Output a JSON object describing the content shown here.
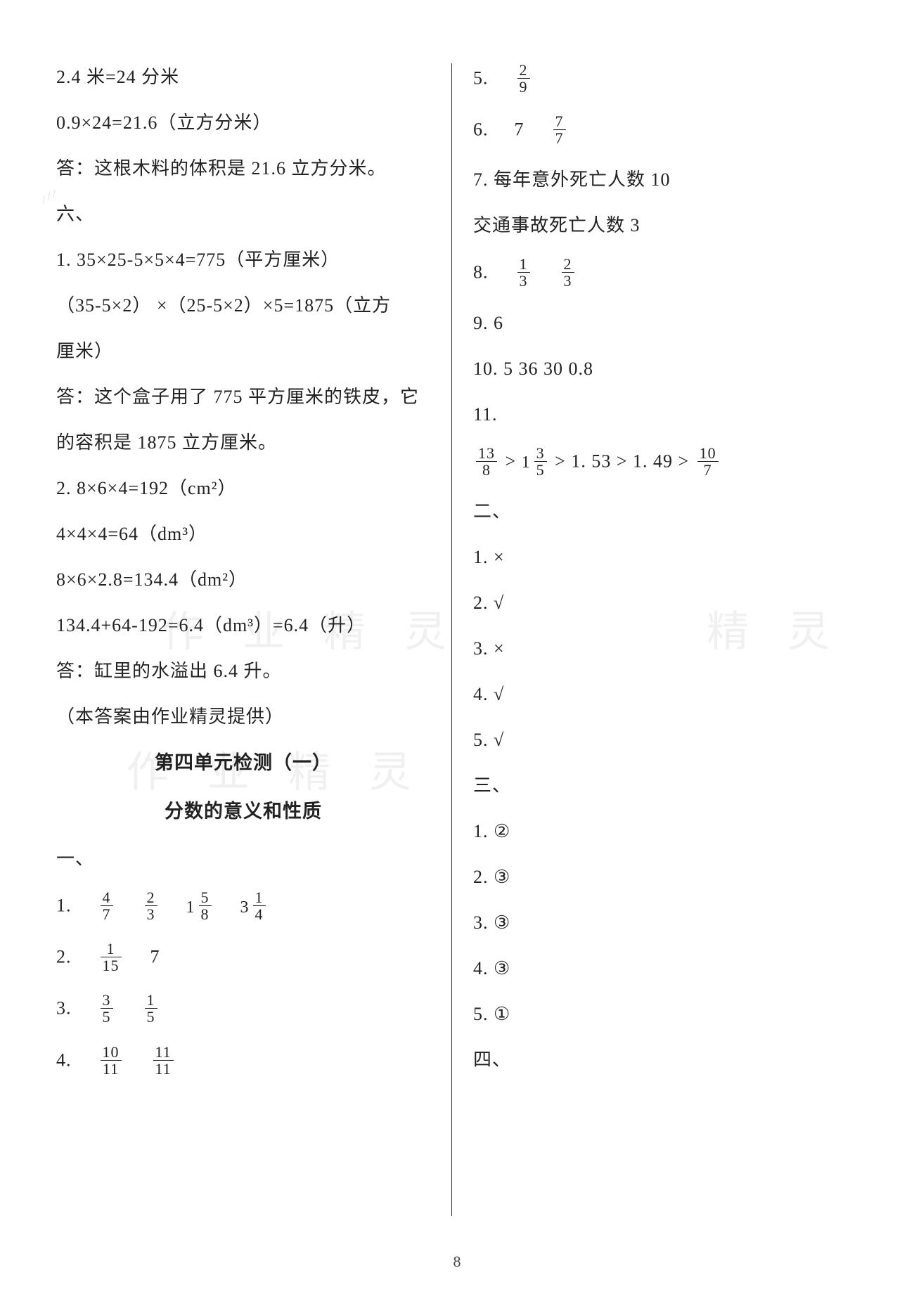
{
  "page_number": "8",
  "background_color": "#ffffff",
  "text_color": "#222",
  "font_size_body": 26,
  "font_size_heading": 27,
  "left_col": {
    "l1": "2.4 米=24 分米",
    "l2": "0.9×24=21.6（立方分米）",
    "l3": "答：这根木料的体积是 21.6 立方分米。",
    "l4": "六、",
    "l5": "1.   35×25-5×5×4=775（平方厘米）",
    "l6": "（35-5×2） ×（25-5×2）×5=1875（立方",
    "l7": "厘米）",
    "l8": "答：这个盒子用了 775 平方厘米的铁皮，它",
    "l9": "的容积是 1875 立方厘米。",
    "l10": "2.   8×6×4=192（cm²）",
    "l11": "4×4×4=64（dm³）",
    "l12": "8×6×2.8=134.4（dm²）",
    "l13": "134.4+64-192=6.4（dm³）=6.4（升）",
    "l14": "答：缸里的水溢出 6.4 升。",
    "l15": "（本答案由作业精灵提供）",
    "h1": "第四单元检测（一）",
    "h2": "分数的意义和性质",
    "l16": "一、",
    "l17_label": "1.",
    "l17_fracs": [
      {
        "num": "4",
        "den": "7"
      },
      {
        "num": "2",
        "den": "3"
      },
      {
        "int": "1",
        "num": "5",
        "den": "8"
      },
      {
        "int": "3",
        "num": "1",
        "den": "4"
      }
    ],
    "l18_label": "2.",
    "l18_frac": {
      "num": "1",
      "den": "15"
    },
    "l18_tail": "7",
    "l19_label": "3.",
    "l19_fracs": [
      {
        "num": "3",
        "den": "5"
      },
      {
        "num": "1",
        "den": "5"
      }
    ],
    "l20_label": "4.",
    "l20_fracs": [
      {
        "num": "10",
        "den": "11"
      },
      {
        "num": "11",
        "den": "11"
      }
    ]
  },
  "right_col": {
    "r1_label": "5.",
    "r1_frac": {
      "num": "2",
      "den": "9"
    },
    "r2_label": "6.",
    "r2_pre": "7",
    "r2_frac": {
      "num": "7",
      "den": "7"
    },
    "r3": "7.   每年意外死亡人数   10",
    "r4": "交通事故死亡人数   3",
    "r5_label": "8.",
    "r5_fracs": [
      {
        "num": "1",
        "den": "3"
      },
      {
        "num": "2",
        "den": "3"
      }
    ],
    "r6": "9.   6",
    "r7": "10.   5   36   30   0.8",
    "r8": "11.",
    "r9_parts": {
      "f1": {
        "num": "13",
        "den": "8"
      },
      "gt1": " > ",
      "mixed": {
        "int": "1",
        "num": "3",
        "den": "5"
      },
      "gt2": " > 1. 53 > 1. 49 > ",
      "f2": {
        "num": "10",
        "den": "7"
      }
    },
    "r10": "二、",
    "r11": "1.   ×",
    "r12": "2.   √",
    "r13": "3.   ×",
    "r14": "4.   √",
    "r15": "5.   √",
    "r16": "三、",
    "r17": "1.   ②",
    "r18": "2.   ③",
    "r19": "3.   ③",
    "r20": "4.   ③",
    "r21": "5.   ①",
    "r22": "四、"
  },
  "watermarks": {
    "wm1": "作 业 精 灵",
    "wm2": "作 业 精 灵",
    "wm3": "精 灵"
  }
}
